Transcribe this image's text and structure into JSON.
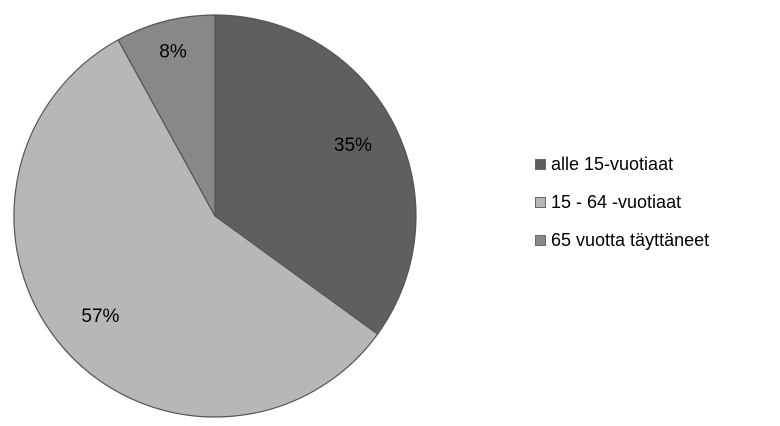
{
  "colors": {
    "background": "#ffffff",
    "outline": "#555555"
  },
  "chart_data": {
    "type": "pie",
    "title": "",
    "categories": [
      "alle 15-vuotiaat",
      "15 - 64 -vuotiaat",
      "65 vuotta täyttäneet"
    ],
    "values": [
      35,
      57,
      8
    ],
    "labels": [
      "35%",
      "57%",
      "8%"
    ],
    "colors": [
      "#5f5f5f",
      "#b7b7b7",
      "#888888"
    ],
    "start_angle": "12 o'clock",
    "direction": "clockwise",
    "legend": "right"
  }
}
